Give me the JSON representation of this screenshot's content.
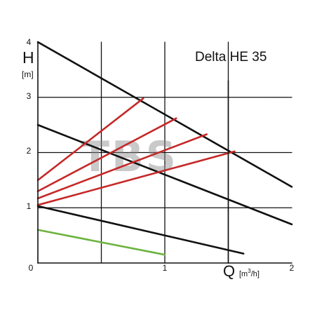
{
  "chart_data": {
    "type": "line",
    "title": "Delta HE 35",
    "watermark": "TBS",
    "y_axis": {
      "symbol": "H",
      "unit": "[m]",
      "range": [
        0,
        4
      ],
      "ticks": [
        "0",
        "1",
        "2",
        "3",
        "4"
      ]
    },
    "x_axis": {
      "symbol": "Q",
      "unit_prefix": "[m",
      "unit_exp": "3",
      "unit_suffix": "/h]",
      "range": [
        0,
        2
      ],
      "ticks": [
        "1",
        "2"
      ]
    },
    "grid": true,
    "series": [
      {
        "color": "#111111",
        "points": [
          [
            0,
            4.0
          ],
          [
            2.0,
            1.38
          ]
        ]
      },
      {
        "color": "#111111",
        "points": [
          [
            0,
            2.5
          ],
          [
            2.0,
            0.7
          ]
        ]
      },
      {
        "color": "#111111",
        "points": [
          [
            0,
            1.03
          ],
          [
            1.62,
            0.17
          ]
        ]
      },
      {
        "color": "#c62828",
        "points": [
          [
            0,
            1.5
          ],
          [
            0.83,
            2.98
          ]
        ]
      },
      {
        "color": "#c62828",
        "points": [
          [
            0,
            1.3
          ],
          [
            1.09,
            2.62
          ]
        ]
      },
      {
        "color": "#c62828",
        "points": [
          [
            0,
            1.17
          ],
          [
            1.33,
            2.33
          ]
        ]
      },
      {
        "color": "#c62828",
        "points": [
          [
            0,
            1.05
          ],
          [
            1.55,
            2.02
          ]
        ]
      },
      {
        "color": "#6cb33f",
        "points": [
          [
            0,
            0.6
          ],
          [
            1.0,
            0.15
          ]
        ]
      }
    ]
  }
}
